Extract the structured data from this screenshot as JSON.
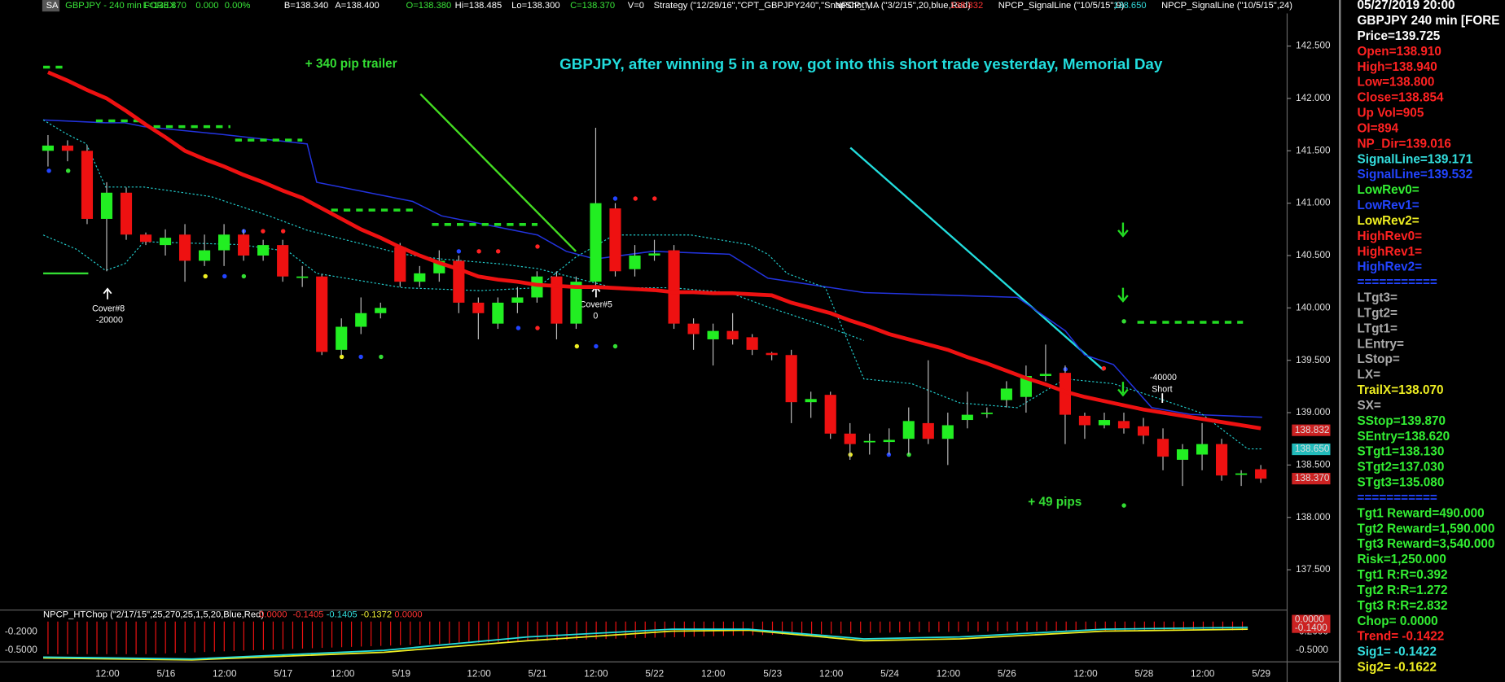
{
  "header": {
    "items": [
      {
        "text": "SA",
        "color": "#ffffff"
      },
      {
        "text": "GBPJPY - 240 min  FOREX",
        "color": "#39e639"
      },
      {
        "text": "L=138.370",
        "color": "#39e639"
      },
      {
        "text": "0.000",
        "color": "#39e639"
      },
      {
        "text": "0.00%",
        "color": "#39e639"
      },
      {
        "text": "B=138.340",
        "color": "#ffffff"
      },
      {
        "text": "A=138.400",
        "color": "#ffffff"
      },
      {
        "text": "O=138.380",
        "color": "#39e639"
      },
      {
        "text": "Hi=138.485",
        "color": "#ffffff"
      },
      {
        "text": "Lo=138.300",
        "color": "#ffffff"
      },
      {
        "text": "C=138.370",
        "color": "#39e639"
      },
      {
        "text": "V=0",
        "color": "#ffffff"
      },
      {
        "text": "Strategy (\"12/29/16\",\"CPT_GBPJPY240\",\"SnapShot\",...",
        "color": "#ffffff"
      },
      {
        "text": "NPCP_MA (\"3/2/15\",20,blue,Red)",
        "color": "#ffffff"
      },
      {
        "text": "138.832",
        "color": "#ff3333"
      },
      {
        "text": "NPCP_SignalLine (\"10/5/15\",9)",
        "color": "#ffffff"
      },
      {
        "text": "138.650",
        "color": "#33dddd"
      },
      {
        "text": "NPCP_SignalLine (\"10/5/15\",24)",
        "color": "#ffffff"
      }
    ]
  },
  "chart": {
    "title": "GBPJPY, after winning 5 in a row, got into this short trade yesterday, Memorial Day",
    "annotations": [
      {
        "text": "+ 340 pip trailer",
        "color": "#33dd33"
      },
      {
        "text": "Cover#8",
        "color": "#ffffff"
      },
      {
        "text": "-20000",
        "color": "#ffffff"
      },
      {
        "text": "Cover#5",
        "color": "#ffffff"
      },
      {
        "text": "0",
        "color": "#ffffff"
      },
      {
        "text": "-40000",
        "color": "#ffffff"
      },
      {
        "text": "Short",
        "color": "#ffffff"
      },
      {
        "text": "+ 49 pips",
        "color": "#33dd33"
      }
    ],
    "ylim": [
      137.0,
      142.8
    ],
    "yticks": [
      {
        "value": 142.5,
        "label": "142.500"
      },
      {
        "value": 142.0,
        "label": "142.000"
      },
      {
        "value": 141.5,
        "label": "141.500"
      },
      {
        "value": 141.0,
        "label": "141.000"
      },
      {
        "value": 140.5,
        "label": "140.500"
      },
      {
        "value": 140.0,
        "label": "140.000"
      },
      {
        "value": 139.5,
        "label": "139.500"
      },
      {
        "value": 139.0,
        "label": "139.000"
      },
      {
        "value": 138.5,
        "label": "138.500"
      },
      {
        "value": 138.0,
        "label": "138.000"
      },
      {
        "value": 137.5,
        "label": "137.500"
      }
    ],
    "price_boxes": [
      {
        "value": 138.832,
        "label": "138.832",
        "color": "#cc2222"
      },
      {
        "value": 138.65,
        "label": "138.650",
        "color": "#22bbbb"
      },
      {
        "value": 138.37,
        "label": "138.370",
        "color": "#cc2222"
      }
    ],
    "time_labels": [
      "12:00",
      "5/16",
      "12:00",
      "5/17",
      "12:00",
      "5/19",
      "12:00",
      "5/21",
      "12:00",
      "5/22",
      "12:00",
      "5/23",
      "12:00",
      "5/24",
      "12:00",
      "5/26",
      "12:00",
      "5/28",
      "12:00",
      "5/29"
    ],
    "candles": {
      "open": [
        141.5,
        141.55,
        141.5,
        140.85,
        141.1,
        140.7,
        140.6,
        140.7,
        140.45,
        140.55,
        140.7,
        140.5,
        140.6,
        140.3,
        140.3,
        139.6,
        139.82,
        139.95,
        140.58,
        140.25,
        140.33,
        140.45,
        140.05,
        139.85,
        140.05,
        140.1,
        140.3,
        139.85,
        140.25,
        140.95,
        140.37,
        140.5,
        140.55,
        139.85,
        139.7,
        139.78,
        139.72,
        139.57,
        139.55,
        139.1,
        139.17,
        138.8,
        138.73,
        138.72,
        138.75,
        138.9,
        138.75,
        138.93,
        139.0,
        139.12,
        139.15,
        139.35,
        139.38,
        138.97,
        138.88,
        138.92,
        138.87,
        138.75,
        138.55,
        138.6,
        138.7,
        138.42,
        138.46
      ],
      "high": [
        141.65,
        141.6,
        141.55,
        141.2,
        141.15,
        140.72,
        140.75,
        140.8,
        140.7,
        140.8,
        140.75,
        140.65,
        140.65,
        140.4,
        140.32,
        139.9,
        140.1,
        140.05,
        140.62,
        140.4,
        140.55,
        140.5,
        140.1,
        140.1,
        140.2,
        140.35,
        140.35,
        140.3,
        141.72,
        141.0,
        140.6,
        140.65,
        140.6,
        139.9,
        139.85,
        139.95,
        139.75,
        139.58,
        139.6,
        139.2,
        139.2,
        138.9,
        138.8,
        138.85,
        139.05,
        139.5,
        139.0,
        139.2,
        139.05,
        139.3,
        139.45,
        139.65,
        139.45,
        139.0,
        139.0,
        139.0,
        138.95,
        138.85,
        138.7,
        138.9,
        138.75,
        138.45,
        138.5
      ],
      "low": [
        141.35,
        141.4,
        140.8,
        140.35,
        140.65,
        140.6,
        140.5,
        140.25,
        140.4,
        140.4,
        140.45,
        140.45,
        140.25,
        140.2,
        139.55,
        139.55,
        139.75,
        139.9,
        140.2,
        140.2,
        140.25,
        139.95,
        139.7,
        139.8,
        139.95,
        140.05,
        139.7,
        139.8,
        140.2,
        140.3,
        140.3,
        140.45,
        139.8,
        139.6,
        139.45,
        139.65,
        139.55,
        139.5,
        138.9,
        138.95,
        138.75,
        138.55,
        138.6,
        138.6,
        138.6,
        138.7,
        138.5,
        138.85,
        138.95,
        139.05,
        139.0,
        139.3,
        138.7,
        138.75,
        138.85,
        138.8,
        138.7,
        138.45,
        138.3,
        138.45,
        138.35,
        138.3,
        138.33
      ],
      "close": [
        141.55,
        141.5,
        140.85,
        141.1,
        140.7,
        140.63,
        140.67,
        140.45,
        140.55,
        140.7,
        140.5,
        140.6,
        140.3,
        140.3,
        139.58,
        139.82,
        139.95,
        140.0,
        140.25,
        140.33,
        140.45,
        140.05,
        139.95,
        140.05,
        140.1,
        140.3,
        139.85,
        140.25,
        141.0,
        140.35,
        140.5,
        140.52,
        139.85,
        139.75,
        139.78,
        139.7,
        139.6,
        139.55,
        139.1,
        139.13,
        138.8,
        138.7,
        138.73,
        138.74,
        138.92,
        138.75,
        138.88,
        138.98,
        139.0,
        139.23,
        139.35,
        139.37,
        138.98,
        138.88,
        138.93,
        138.85,
        138.78,
        138.58,
        138.65,
        138.7,
        138.4,
        138.42,
        138.37
      ]
    },
    "ma": [
      142.25,
      142.17,
      142.08,
      142.0,
      141.88,
      141.75,
      141.63,
      141.5,
      141.42,
      141.35,
      141.27,
      141.2,
      141.12,
      141.05,
      140.95,
      140.85,
      140.75,
      140.67,
      140.58,
      140.5,
      140.43,
      140.37,
      140.3,
      140.27,
      140.25,
      140.22,
      140.21,
      140.2,
      140.2,
      140.19,
      140.18,
      140.17,
      140.15,
      140.15,
      140.14,
      140.14,
      140.13,
      140.12,
      140.05,
      140.0,
      139.95,
      139.88,
      139.82,
      139.75,
      139.7,
      139.65,
      139.6,
      139.53,
      139.47,
      139.4,
      139.33,
      139.27,
      139.2,
      139.15,
      139.11,
      139.07,
      139.03,
      139.0,
      138.97,
      138.94,
      138.91,
      138.88,
      138.85
    ],
    "ma_color": "#ee1111"
  },
  "indicator": {
    "label": "NPCP_HTChop (\"2/17/15\",25,270,25,1,5,20,Blue,Red)",
    "readouts": [
      {
        "text": "0.0000",
        "color": "#ff3333"
      },
      {
        "text": "-0.1405",
        "color": "#ff3333"
      },
      {
        "text": "-0.1405",
        "color": "#33dddd"
      },
      {
        "text": "-0.1372",
        "color": "#eeee33"
      },
      {
        "text": "0.0000",
        "color": "#ff3333"
      }
    ],
    "ylim": [
      -0.7,
      0.1
    ],
    "yticks": [
      {
        "value": -0.2,
        "label": "-0.2000"
      },
      {
        "value": -0.5,
        "label": "-0.5000"
      }
    ],
    "boxes": [
      {
        "value": 0.0,
        "label": "0.0000",
        "color": "#cc2222"
      },
      {
        "value": -0.14,
        "label": "-0.1400",
        "color": "#cc2222"
      }
    ]
  },
  "panel": {
    "lines": [
      {
        "text": "05/27/2019 20:00",
        "color": "#ffffff"
      },
      {
        "text": "GBPJPY 240 min [FORE",
        "color": "#ffffff"
      },
      {
        "text": "Price=139.725",
        "color": "#ffffff"
      },
      {
        "text": "Open=138.910",
        "color": "#ff2222"
      },
      {
        "text": "High=138.940",
        "color": "#ff2222"
      },
      {
        "text": "Low=138.800",
        "color": "#ff2222"
      },
      {
        "text": "Close=138.854",
        "color": "#ff2222"
      },
      {
        "text": "Up Vol=905",
        "color": "#ff2222"
      },
      {
        "text": "OI=894",
        "color": "#ff2222"
      },
      {
        "text": "NP_Dir=139.016",
        "color": "#ff2222"
      },
      {
        "text": "SignalLine=139.171",
        "color": "#33dddd"
      },
      {
        "text": "SignalLine=139.532",
        "color": "#2244ff"
      },
      {
        "text": "LowRev0=",
        "color": "#33ee33"
      },
      {
        "text": "LowRev1=",
        "color": "#2244ff"
      },
      {
        "text": "LowRev2=",
        "color": "#eeee22"
      },
      {
        "text": "HighRev0=",
        "color": "#ff2222"
      },
      {
        "text": "HighRev1=",
        "color": "#ff2222"
      },
      {
        "text": "HighRev2=",
        "color": "#2244ff"
      },
      {
        "text": "===========",
        "color": "#2244ff"
      },
      {
        "text": "LTgt3=",
        "color": "#aaaaaa"
      },
      {
        "text": "LTgt2=",
        "color": "#aaaaaa"
      },
      {
        "text": "LTgt1=",
        "color": "#aaaaaa"
      },
      {
        "text": "LEntry=",
        "color": "#aaaaaa"
      },
      {
        "text": "LStop=",
        "color": "#aaaaaa"
      },
      {
        "text": "LX=",
        "color": "#aaaaaa"
      },
      {
        "text": "TrailX=138.070",
        "color": "#eeee22"
      },
      {
        "text": "SX=",
        "color": "#aaaaaa"
      },
      {
        "text": "SStop=139.870",
        "color": "#33ee33"
      },
      {
        "text": "SEntry=138.620",
        "color": "#33ee33"
      },
      {
        "text": "STgt1=138.130",
        "color": "#33ee33"
      },
      {
        "text": "STgt2=137.030",
        "color": "#33ee33"
      },
      {
        "text": "STgt3=135.080",
        "color": "#33ee33"
      },
      {
        "text": "===========",
        "color": "#2244ff"
      },
      {
        "text": "Tgt1 Reward=490.000",
        "color": "#33ee33"
      },
      {
        "text": "Tgt2 Reward=1,590.000",
        "color": "#33ee33"
      },
      {
        "text": "Tgt3 Reward=3,540.000",
        "color": "#33ee33"
      },
      {
        "text": "Risk=1,250.000",
        "color": "#33ee33"
      },
      {
        "text": "Tgt1 R:R=0.392",
        "color": "#33ee33"
      },
      {
        "text": "Tgt2 R:R=1.272",
        "color": "#33ee33"
      },
      {
        "text": "Tgt3 R:R=2.832",
        "color": "#33ee33"
      },
      {
        "text": "Chop= 0.0000",
        "color": "#33ee33"
      },
      {
        "text": "Trend= -0.1422",
        "color": "#ff2222"
      },
      {
        "text": "Sig1= -0.1422",
        "color": "#33dddd"
      },
      {
        "text": "Sig2= -0.1622",
        "color": "#eeee22"
      }
    ]
  }
}
